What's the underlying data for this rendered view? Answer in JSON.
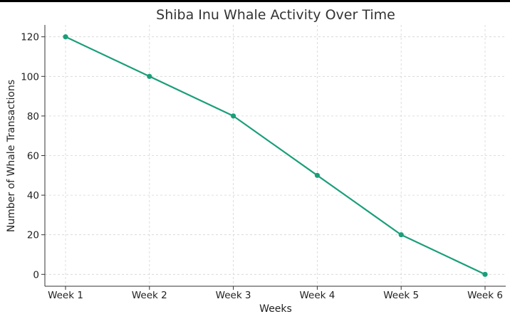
{
  "chart_data": {
    "type": "line",
    "title": "Shiba Inu Whale Activity Over Time",
    "xlabel": "Weeks",
    "ylabel": "Number of Whale Transactions",
    "categories": [
      "Week 1",
      "Week 2",
      "Week 3",
      "Week 4",
      "Week 5",
      "Week 6"
    ],
    "series": [
      {
        "values": [
          120,
          100,
          80,
          50,
          20,
          0
        ]
      }
    ],
    "ylim": [
      -6,
      126
    ],
    "yticks": [
      0,
      20,
      40,
      60,
      80,
      100,
      120
    ],
    "grid": true,
    "marker": "circle",
    "colors": {
      "line": "#1a9e7a"
    }
  }
}
